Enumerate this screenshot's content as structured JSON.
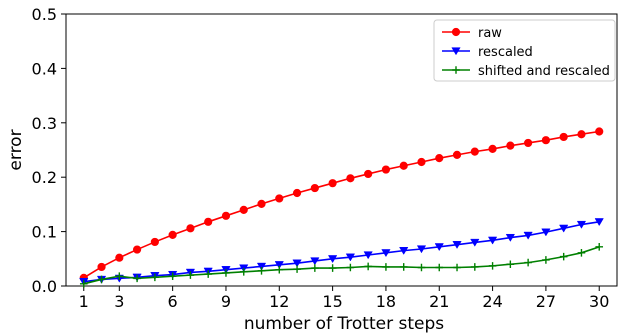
{
  "chart_data": {
    "type": "line",
    "title": "",
    "xlabel": "number of Trotter steps",
    "ylabel": "error",
    "xlim": [
      0,
      31
    ],
    "ylim": [
      0,
      0.5
    ],
    "xticks": [
      1,
      3,
      6,
      9,
      12,
      15,
      18,
      21,
      24,
      27,
      30
    ],
    "xtick_labels": [
      "1",
      "3",
      "6",
      "9",
      "12",
      "15",
      "18",
      "21",
      "24",
      "27",
      "30"
    ],
    "yticks": [
      0.0,
      0.1,
      0.2,
      0.3,
      0.4,
      0.5
    ],
    "ytick_labels": [
      "0.0",
      "0.1",
      "0.2",
      "0.3",
      "0.4",
      "0.5"
    ],
    "grid": false,
    "legend_position": "top-right",
    "x": [
      1,
      2,
      3,
      4,
      5,
      6,
      7,
      8,
      9,
      10,
      11,
      12,
      13,
      14,
      15,
      16,
      17,
      18,
      19,
      20,
      21,
      22,
      23,
      24,
      25,
      26,
      27,
      28,
      29,
      30
    ],
    "series": [
      {
        "name": "raw",
        "color": "#ff0000",
        "marker": "circle",
        "values": [
          0.015,
          0.035,
          0.052,
          0.067,
          0.081,
          0.094,
          0.106,
          0.118,
          0.129,
          0.14,
          0.151,
          0.161,
          0.171,
          0.18,
          0.189,
          0.198,
          0.206,
          0.214,
          0.221,
          0.228,
          0.235,
          0.241,
          0.247,
          0.252,
          0.258,
          0.263,
          0.268,
          0.274,
          0.279,
          0.284
        ]
      },
      {
        "name": "rescaled",
        "color": "#0000ff",
        "marker": "triangle-down",
        "values": [
          0.008,
          0.012,
          0.014,
          0.016,
          0.019,
          0.021,
          0.025,
          0.027,
          0.03,
          0.033,
          0.036,
          0.039,
          0.042,
          0.046,
          0.05,
          0.053,
          0.057,
          0.061,
          0.065,
          0.068,
          0.072,
          0.076,
          0.08,
          0.084,
          0.089,
          0.093,
          0.099,
          0.106,
          0.113,
          0.118
        ]
      },
      {
        "name": "shifted and rescaled",
        "color": "#008000",
        "marker": "plus",
        "values": [
          0.004,
          0.012,
          0.018,
          0.014,
          0.016,
          0.018,
          0.02,
          0.022,
          0.024,
          0.026,
          0.028,
          0.03,
          0.031,
          0.033,
          0.033,
          0.034,
          0.036,
          0.035,
          0.035,
          0.034,
          0.034,
          0.034,
          0.035,
          0.037,
          0.04,
          0.043,
          0.048,
          0.054,
          0.061,
          0.072
        ]
      }
    ]
  }
}
